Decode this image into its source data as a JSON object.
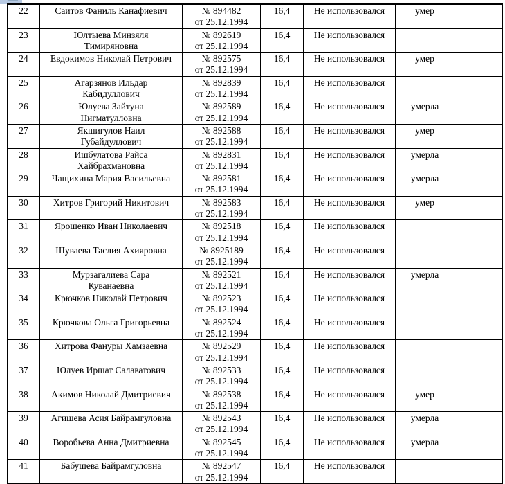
{
  "page": {
    "background": "#ffffff",
    "border_color": "#000000",
    "text_color": "#000000",
    "ui_fragment_color": "#b7c9e2"
  },
  "table": {
    "columns": [
      "num",
      "name",
      "certificate",
      "value",
      "status",
      "death",
      "extra"
    ],
    "rows": [
      {
        "num": "22",
        "name": "Саитов Фаниль Канафиевич",
        "certificate": [
          "№ 894482",
          "от 25.12.1994"
        ],
        "value": "16,4",
        "status": "Не использовался",
        "death": "умер",
        "extra": ""
      },
      {
        "num": "23",
        "name": [
          "Юлтыева Минзяля",
          "Тимиряновна"
        ],
        "certificate": [
          "№ 892619",
          "от 25.12.1994"
        ],
        "value": "16,4",
        "status": "Не использовался",
        "death": "",
        "extra": ""
      },
      {
        "num": "24",
        "name": "Евдокимов Николай Петрович",
        "certificate": [
          "№ 892575",
          "от 25.12.1994"
        ],
        "value": "16,4",
        "status": "Не использовался",
        "death": "умер",
        "extra": ""
      },
      {
        "num": "25",
        "name": [
          "Агарзянов Ильдар",
          "Кабидуллович"
        ],
        "certificate": [
          "№ 892839",
          "от 25.12.1994"
        ],
        "value": "16,4",
        "status": "Не использовался",
        "death": "",
        "extra": ""
      },
      {
        "num": "26",
        "name": [
          "Юлуева Зайтуна",
          "Нигматулловна"
        ],
        "certificate": [
          "№ 892589",
          "от 25.12.1994"
        ],
        "value": "16,4",
        "status": "Не использовался",
        "death": "умерла",
        "extra": ""
      },
      {
        "num": "27",
        "name": [
          "Якшигулов Наил",
          "Губайдуллович"
        ],
        "certificate": [
          "№ 892588",
          "от 25.12.1994"
        ],
        "value": "16,4",
        "status": "Не использовался",
        "death": "умер",
        "extra": ""
      },
      {
        "num": "28",
        "name": [
          "Ишбулатова Райса",
          "Хайбрахмановна"
        ],
        "certificate": [
          "№ 892831",
          "от 25.12.1994"
        ],
        "value": "16,4",
        "status": "Не использовался",
        "death": "умерла",
        "extra": ""
      },
      {
        "num": "29",
        "name": "Чащихина Мария Васильевна",
        "certificate": [
          "№ 892581",
          "от 25.12.1994"
        ],
        "value": "16,4",
        "status": "Не использовался",
        "death": "умерла",
        "extra": ""
      },
      {
        "num": "30",
        "name": "Хитров Григорий Никитович",
        "certificate": [
          "№ 892583",
          "от 25.12.1994"
        ],
        "value": "16,4",
        "status": "Не использовался",
        "death": "умер",
        "extra": ""
      },
      {
        "num": "31",
        "name": "Ярошенко Иван Николаевич",
        "certificate": [
          "№ 892518",
          "от 25.12.1994"
        ],
        "value": "16,4",
        "status": "Не использовался",
        "death": "",
        "extra": ""
      },
      {
        "num": "32",
        "name": "Шуваева Таслия Ахияровна",
        "certificate": [
          "№ 8925189",
          "от 25.12.1994"
        ],
        "value": "16,4",
        "status": "Не использовался",
        "death": "",
        "extra": ""
      },
      {
        "num": "33",
        "name": [
          "Мурзагалиева Сара",
          "Куванаевна"
        ],
        "certificate": [
          "№ 892521",
          "от 25.12.1994"
        ],
        "value": "16,4",
        "status": "Не использовался",
        "death": "умерла",
        "extra": ""
      },
      {
        "num": "34",
        "name": "Крючков Николай Петрович",
        "certificate": [
          "№ 892523",
          "от 25.12.1994"
        ],
        "value": "16,4",
        "status": "Не использовался",
        "death": "",
        "extra": ""
      },
      {
        "num": "35",
        "name": "Крючкова Ольга Григорьевна",
        "certificate": [
          "№ 892524",
          "от 25.12.1994"
        ],
        "value": "16,4",
        "status": "Не использовался",
        "death": "",
        "extra": ""
      },
      {
        "num": "36",
        "name": "Хитрова Фануры Хамзаевна",
        "certificate": [
          "№ 892529",
          "от 25.12.1994"
        ],
        "value": "16,4",
        "status": "Не использовался",
        "death": "",
        "extra": ""
      },
      {
        "num": "37",
        "name": "Юлуев Иршат Салаватович",
        "certificate": [
          "№ 892533",
          "от 25.12.1994"
        ],
        "value": "16,4",
        "status": "Не использовался",
        "death": "",
        "extra": ""
      },
      {
        "num": "38",
        "name": "Акимов Николай Дмитриевич",
        "certificate": [
          "№ 892538",
          "от 25.12.1994"
        ],
        "value": "16,4",
        "status": "Не использовался",
        "death": "умер",
        "extra": ""
      },
      {
        "num": "39",
        "name": "Агишева Асия Байрамгуловна",
        "certificate": [
          "№ 892543",
          "от 25.12.1994"
        ],
        "value": "16,4",
        "status": "Не использовался",
        "death": "умерла",
        "extra": ""
      },
      {
        "num": "40",
        "name": "Воробьева Анна Дмитриевна",
        "certificate": [
          "№ 892545",
          "от 25.12.1994"
        ],
        "value": "16,4",
        "status": "Не использовался",
        "death": "умерла",
        "extra": ""
      },
      {
        "num": "41",
        "name": "Бабушева Байрамгуловна",
        "certificate": [
          "№ 892547",
          "от 25.12.1994"
        ],
        "value": "16,4",
        "status": "Не использовался",
        "death": "",
        "extra": ""
      }
    ]
  }
}
